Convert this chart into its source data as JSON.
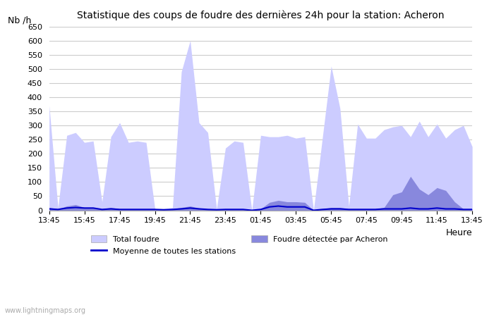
{
  "title": "Statistique des coups de foudre des dernières 24h pour la station: Acheron",
  "xlabel": "Heure",
  "ylabel": "Nb /h",
  "ylim": [
    0,
    650
  ],
  "yticks": [
    0,
    50,
    100,
    150,
    200,
    250,
    300,
    350,
    400,
    450,
    500,
    550,
    600,
    650
  ],
  "x_labels": [
    "13:45",
    "15:45",
    "17:45",
    "19:45",
    "21:45",
    "23:45",
    "01:45",
    "03:45",
    "05:45",
    "07:45",
    "09:45",
    "11:45",
    "13:45"
  ],
  "total_foudre_color": "#ccccff",
  "foudre_acheron_color": "#8888dd",
  "moyenne_color": "#0000cc",
  "background_color": "#ffffff",
  "grid_color": "#cccccc",
  "watermark": "www.lightningmaps.org",
  "total_foudre": [
    370,
    10,
    265,
    275,
    240,
    245,
    30,
    260,
    310,
    240,
    245,
    240,
    5,
    5,
    10,
    490,
    600,
    310,
    275,
    5,
    220,
    245,
    240,
    0,
    265,
    260,
    260,
    265,
    255,
    260,
    0,
    255,
    510,
    360,
    15,
    305,
    255,
    255,
    285,
    295,
    300,
    260,
    315,
    260,
    305,
    255,
    285,
    300,
    225
  ],
  "foudre_acheron": [
    10,
    5,
    15,
    20,
    10,
    10,
    5,
    10,
    5,
    5,
    5,
    5,
    5,
    3,
    5,
    10,
    15,
    8,
    5,
    3,
    5,
    5,
    5,
    0,
    5,
    28,
    35,
    30,
    30,
    28,
    0,
    5,
    10,
    10,
    5,
    5,
    5,
    5,
    10,
    55,
    65,
    120,
    75,
    55,
    80,
    70,
    30,
    5,
    5
  ],
  "moyenne": [
    5,
    3,
    8,
    10,
    8,
    8,
    3,
    5,
    3,
    3,
    3,
    3,
    3,
    2,
    3,
    5,
    8,
    5,
    3,
    2,
    3,
    3,
    3,
    0,
    3,
    12,
    15,
    12,
    12,
    12,
    0,
    3,
    5,
    5,
    3,
    3,
    3,
    3,
    5,
    5,
    5,
    8,
    5,
    5,
    8,
    5,
    5,
    3,
    3
  ]
}
